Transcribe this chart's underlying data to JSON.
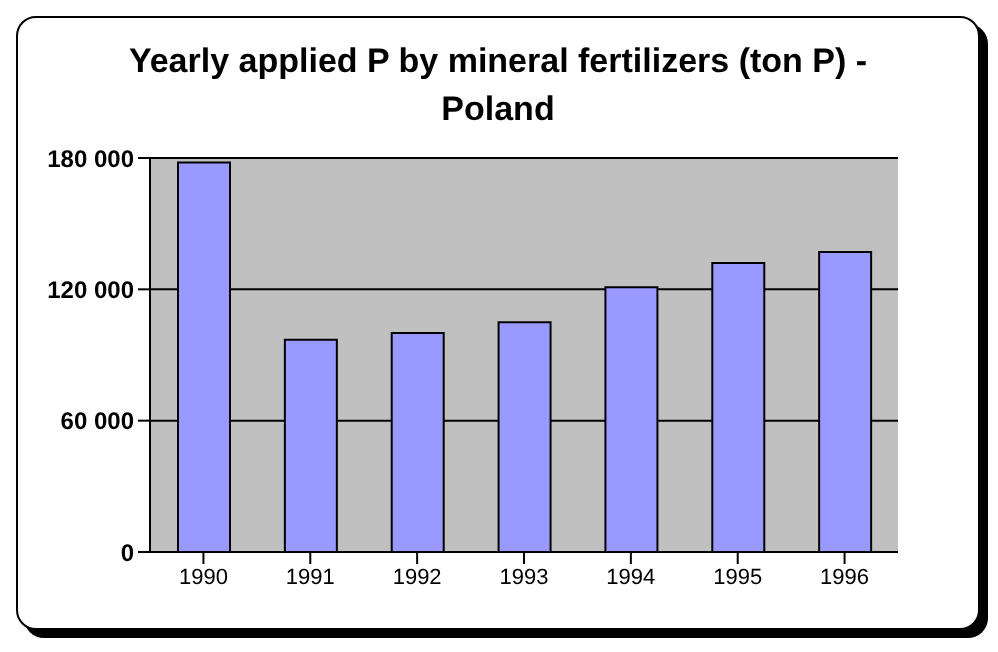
{
  "chart_data": {
    "type": "bar",
    "title": "Yearly applied P by mineral fertilizers (ton P) - Poland",
    "categories": [
      "1990",
      "1991",
      "1992",
      "1993",
      "1994",
      "1995",
      "1996"
    ],
    "values": [
      178000,
      97000,
      100000,
      105000,
      121000,
      132000,
      137000
    ],
    "color": "#9999ff",
    "ylim": [
      0,
      180000
    ],
    "yticks": [
      {
        "value": 0,
        "label": "0"
      },
      {
        "value": 60000,
        "label": "60 000"
      },
      {
        "value": 120000,
        "label": "120 000"
      },
      {
        "value": 180000,
        "label": "180 000"
      }
    ],
    "grid": "y"
  }
}
